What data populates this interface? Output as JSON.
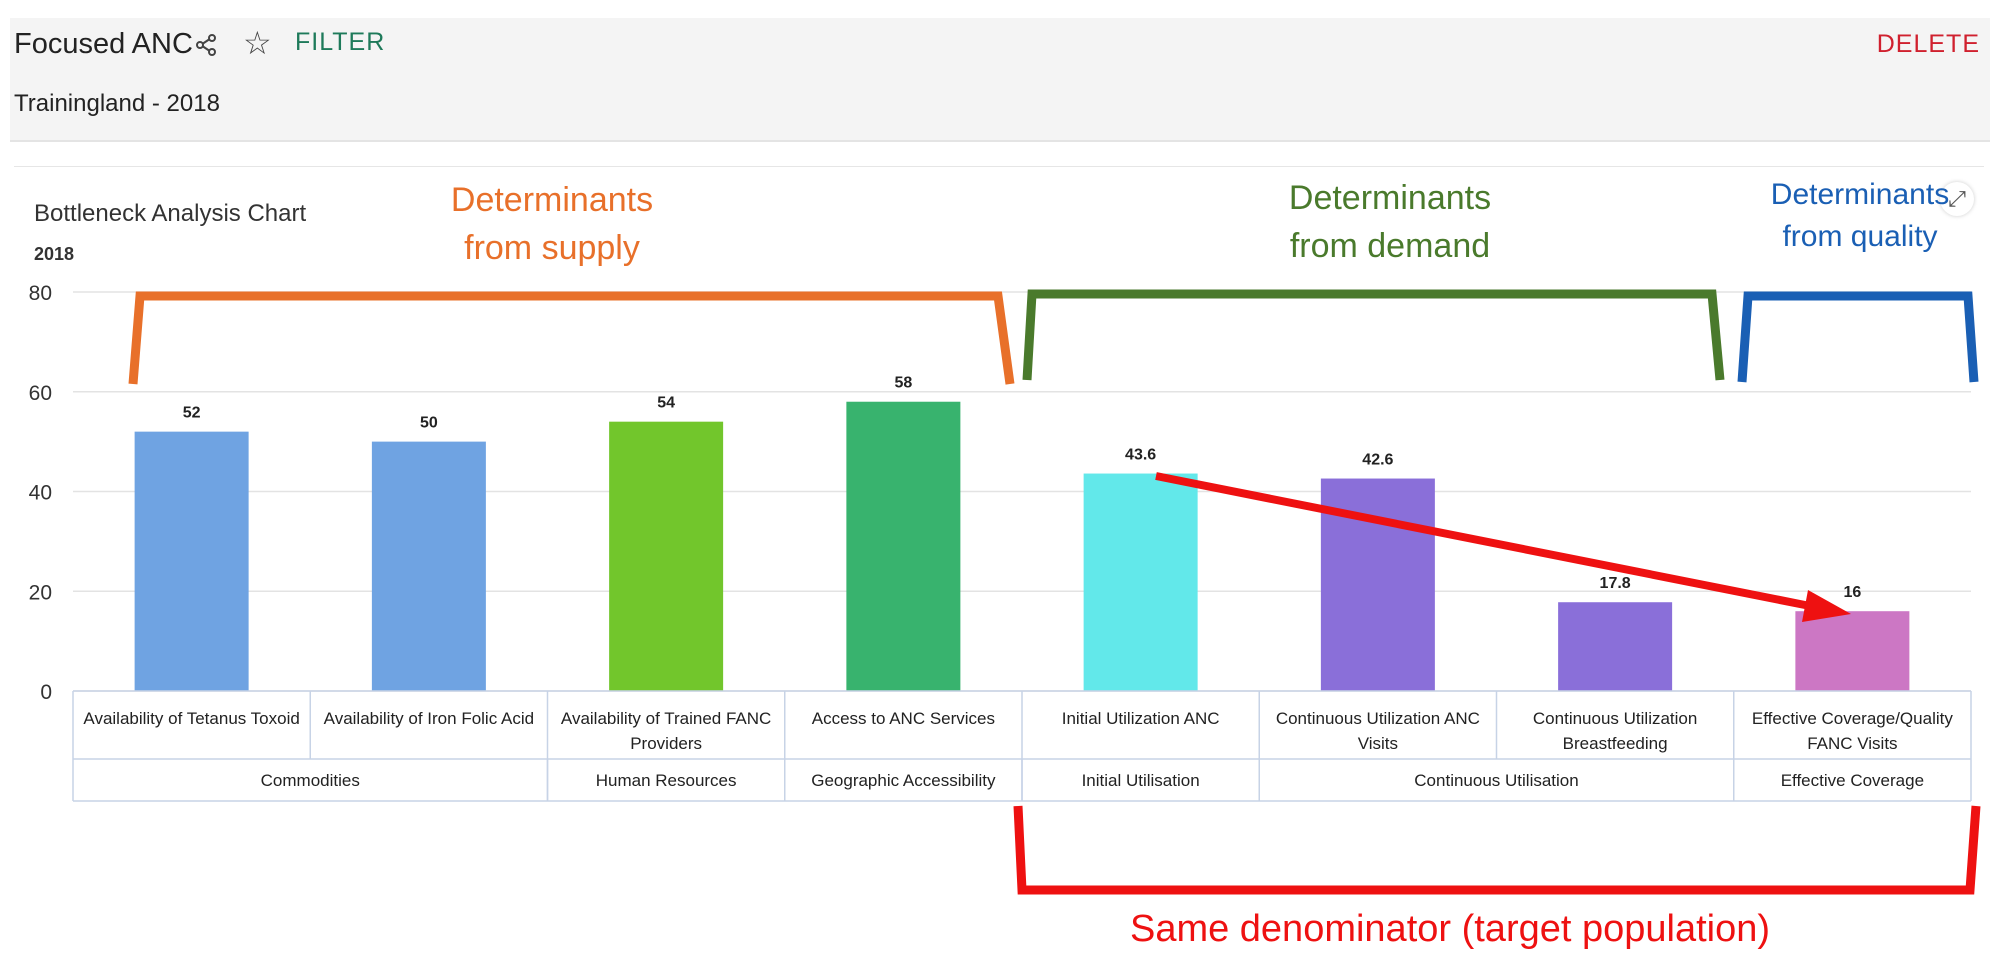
{
  "header": {
    "title": "Focused ANC",
    "filter_label": "FILTER",
    "delete_label": "DELETE",
    "subtitle": "Trainingland - 2018"
  },
  "chart_title": "Bottleneck Analysis Chart",
  "chart_subtitle": "2018",
  "annotations": {
    "supply": [
      "Determinants",
      "from supply"
    ],
    "demand": [
      "Determinants",
      "from demand"
    ],
    "quality": [
      "Determinants",
      "from quality"
    ],
    "denominator": "Same denominator (target population)"
  },
  "colors": {
    "supply": "#e8702a",
    "demand": "#4a7a2c",
    "quality": "#1a5fb4",
    "denominator": "#ee1111"
  },
  "chart_data": {
    "type": "bar",
    "title": "Bottleneck Analysis Chart",
    "subtitle": "2018",
    "ylim": [
      0,
      80
    ],
    "yticks": [
      0,
      20,
      40,
      60,
      80
    ],
    "grid": true,
    "categories": [
      [
        "Availability of Tetanus Toxoid"
      ],
      [
        "Availability of Iron Folic Acid"
      ],
      [
        "Availability of Trained FANC",
        "Providers"
      ],
      [
        "Access to ANC Services"
      ],
      [
        "Initial Utilization ANC"
      ],
      [
        "Continuous Utilization ANC",
        "Visits"
      ],
      [
        "Continuous Utilization",
        "Breastfeeding"
      ],
      [
        "Effective Coverage/Quality",
        "FANC Visits"
      ]
    ],
    "values": [
      52,
      50,
      54,
      58,
      43.6,
      42.6,
      17.8,
      16
    ],
    "value_labels": [
      "52",
      "50",
      "54",
      "58",
      "43.6",
      "42.6",
      "17.8",
      "16"
    ],
    "bar_colors": [
      "#6fa3e2",
      "#6fa3e2",
      "#72c62c",
      "#38b36e",
      "#62e8ea",
      "#8a6fd9",
      "#8a6fd9",
      "#cc77c4"
    ],
    "groups": [
      {
        "label": "Commodities",
        "span": 2
      },
      {
        "label": "Human Resources",
        "span": 1
      },
      {
        "label": "Geographic Accessibility",
        "span": 1
      },
      {
        "label": "Initial Utilisation",
        "span": 1
      },
      {
        "label": "Continuous Utilisation",
        "span": 2
      },
      {
        "label": "Effective Coverage",
        "span": 1
      }
    ]
  }
}
